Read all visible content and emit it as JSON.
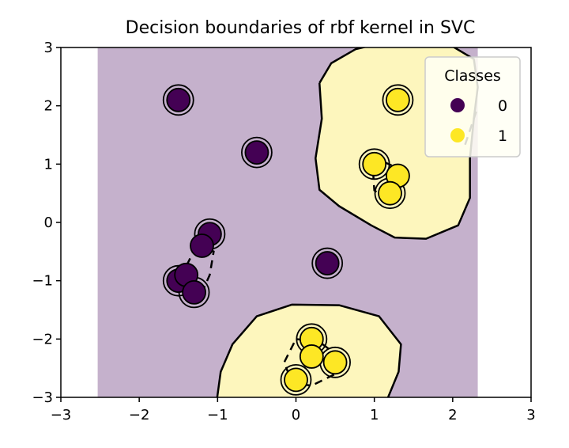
{
  "chart_data": {
    "type": "scatter",
    "title": "Decision boundaries of rbf kernel in SVC",
    "xlabel": "",
    "ylabel": "",
    "xlim": [
      -3,
      3
    ],
    "ylim": [
      -3,
      3
    ],
    "xticks": [
      "−3",
      "−2",
      "−1",
      "0",
      "1",
      "2",
      "3"
    ],
    "yticks": [
      "−3",
      "−2",
      "−1",
      "0",
      "1",
      "2",
      "3"
    ],
    "xtick_values": [
      -3,
      -2,
      -1,
      0,
      1,
      2,
      3
    ],
    "ytick_values": [
      -3,
      -2,
      -1,
      0,
      1,
      2,
      3
    ],
    "background_region": {
      "x": [
        -2.53,
        2.32
      ],
      "color": "#c5b1cc"
    },
    "colors": {
      "class0": "#440154",
      "class1": "#fde725",
      "positive_region": "#fdf6bd"
    },
    "series": [
      {
        "name": "0",
        "points": [
          [
            -1.5,
            2.1
          ],
          [
            -0.5,
            1.2
          ],
          [
            -1.1,
            -0.2
          ],
          [
            -1.2,
            -0.4
          ],
          [
            -1.5,
            -1.0
          ],
          [
            -1.4,
            -0.9
          ],
          [
            -1.3,
            -1.2
          ],
          [
            0.4,
            -0.7
          ]
        ]
      },
      {
        "name": "1",
        "points": [
          [
            1.3,
            2.1
          ],
          [
            1.0,
            1.0
          ],
          [
            1.3,
            0.8
          ],
          [
            1.2,
            0.5
          ],
          [
            0.2,
            -2.0
          ],
          [
            0.2,
            -2.3
          ],
          [
            0.5,
            -2.4
          ],
          [
            0.0,
            -2.7
          ]
        ]
      }
    ],
    "support_vectors": [
      [
        -1.5,
        2.1
      ],
      [
        -0.5,
        1.2
      ],
      [
        -1.1,
        -0.2
      ],
      [
        -1.5,
        -1.0
      ],
      [
        -1.3,
        -1.2
      ],
      [
        0.4,
        -0.7
      ],
      [
        1.3,
        2.1
      ],
      [
        1.0,
        1.0
      ],
      [
        1.2,
        0.5
      ],
      [
        0.2,
        -2.0
      ],
      [
        0.5,
        -2.4
      ],
      [
        0.0,
        -2.7
      ]
    ],
    "decision_boundary": [
      [
        [
          0.3,
          2.39
        ],
        [
          0.45,
          2.73
        ],
        [
          0.76,
          2.97
        ],
        [
          1.26,
          3.13
        ],
        [
          1.86,
          3.13
        ],
        [
          2.27,
          2.8
        ],
        [
          2.32,
          2.32
        ],
        [
          2.27,
          1.78
        ],
        [
          2.22,
          1.1
        ],
        [
          2.22,
          0.42
        ],
        [
          2.07,
          -0.05
        ],
        [
          1.66,
          -0.28
        ],
        [
          1.26,
          -0.26
        ],
        [
          0.96,
          -0.05
        ],
        [
          0.55,
          0.28
        ],
        [
          0.3,
          0.56
        ],
        [
          0.25,
          1.1
        ],
        [
          0.33,
          1.78
        ],
        [
          0.3,
          2.39
        ]
      ],
      [
        [
          -1.01,
          -3.05
        ],
        [
          -0.96,
          -2.56
        ],
        [
          -0.81,
          -2.09
        ],
        [
          -0.5,
          -1.61
        ],
        [
          -0.05,
          -1.41
        ],
        [
          0.55,
          -1.42
        ],
        [
          1.06,
          -1.61
        ],
        [
          1.34,
          -2.09
        ],
        [
          1.31,
          -2.56
        ],
        [
          1.16,
          -3.05
        ]
      ]
    ],
    "margins": [
      [
        [
          0.98,
          0.95
        ],
        [
          1.1,
          1.05
        ],
        [
          1.27,
          0.95
        ],
        [
          1.35,
          0.7
        ],
        [
          1.3,
          0.45
        ],
        [
          1.15,
          0.4
        ],
        [
          1.0,
          0.55
        ],
        [
          0.98,
          0.95
        ]
      ],
      [
        [
          2.3,
          1.9
        ],
        [
          2.25,
          1.7
        ],
        [
          2.2,
          1.5
        ],
        [
          2.15,
          1.3
        ]
      ],
      [
        [
          0.0,
          -2.0
        ],
        [
          0.3,
          -2.05
        ],
        [
          0.55,
          -2.3
        ],
        [
          0.5,
          -2.6
        ],
        [
          0.2,
          -2.8
        ],
        [
          -0.05,
          -2.75
        ],
        [
          -0.15,
          -2.4
        ],
        [
          0.0,
          -2.0
        ]
      ],
      [
        [
          -1.25,
          -0.35
        ],
        [
          -1.05,
          -0.5
        ],
        [
          -1.1,
          -0.9
        ],
        [
          -1.2,
          -1.2
        ],
        [
          -1.35,
          -1.05
        ],
        [
          -1.4,
          -0.75
        ],
        [
          -1.25,
          -0.35
        ]
      ],
      [
        [
          -1.53,
          2.1
        ],
        [
          -1.47,
          2.08
        ]
      ],
      [
        [
          -0.53,
          1.22
        ],
        [
          -0.47,
          1.18
        ]
      ],
      [
        [
          0.37,
          -0.72
        ],
        [
          0.43,
          -0.68
        ]
      ]
    ],
    "legend": {
      "title": "Classes",
      "entries": [
        "0",
        "1"
      ],
      "placement": "top-right"
    }
  }
}
